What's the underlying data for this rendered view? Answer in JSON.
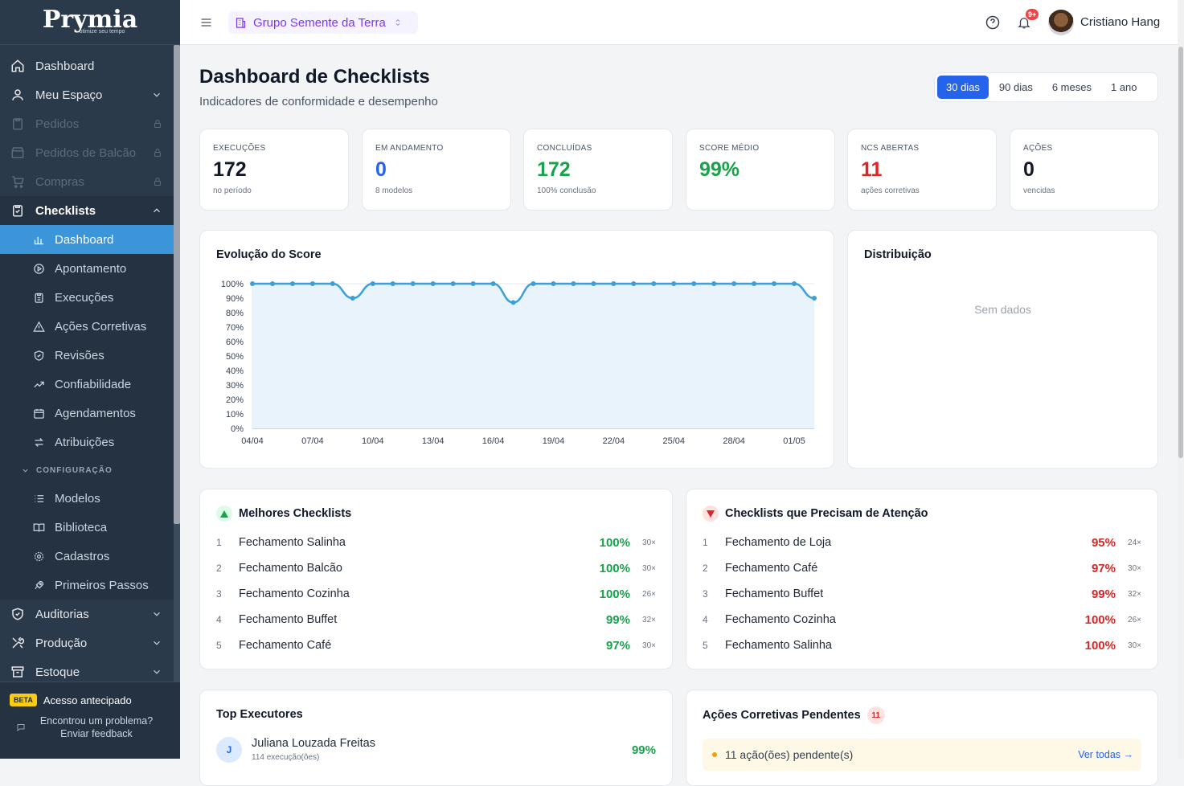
{
  "sidebar": {
    "brand": "Prymia",
    "tagline": "otimize seu tempo",
    "items": [
      {
        "label": "Dashboard"
      },
      {
        "label": "Meu Espaço"
      },
      {
        "label": "Pedidos"
      },
      {
        "label": "Pedidos de Balcão"
      },
      {
        "label": "Compras"
      },
      {
        "label": "Checklists"
      }
    ],
    "checklist_sub": [
      {
        "label": "Dashboard"
      },
      {
        "label": "Apontamento"
      },
      {
        "label": "Execuções"
      },
      {
        "label": "Ações Corretivas"
      },
      {
        "label": "Revisões"
      },
      {
        "label": "Confiabilidade"
      },
      {
        "label": "Agendamentos"
      },
      {
        "label": "Atribuições"
      }
    ],
    "config_label": "CONFIGURAÇÃO",
    "config_sub": [
      {
        "label": "Modelos"
      },
      {
        "label": "Biblioteca"
      },
      {
        "label": "Cadastros"
      },
      {
        "label": "Primeiros Passos"
      }
    ],
    "bottom_items": [
      {
        "label": "Auditorias"
      },
      {
        "label": "Produção"
      },
      {
        "label": "Estoque"
      }
    ],
    "beta_badge": "BETA",
    "beta_label": "Acesso antecipado",
    "feedback_line1": "Encontrou um problema?",
    "feedback_line2": "Enviar feedback"
  },
  "topbar": {
    "org_name": "Grupo Semente da Terra",
    "notif_badge": "9+",
    "user_name": "Cristiano Hang"
  },
  "page": {
    "title": "Dashboard de Checklists",
    "subtitle": "Indicadores de conformidade e desempenho",
    "periods": [
      "30 dias",
      "90 dias",
      "6 meses",
      "1 ano"
    ],
    "active_period": "30 dias"
  },
  "kpis": [
    {
      "label": "EXECUÇÕES",
      "value": "172",
      "sub": "no período",
      "color": "#111827"
    },
    {
      "label": "EM ANDAMENTO",
      "value": "0",
      "sub": "8 modelos",
      "color": "#2563eb"
    },
    {
      "label": "CONCLUÍDAS",
      "value": "172",
      "sub": "100% conclusão",
      "color": "#16a34a"
    },
    {
      "label": "SCORE MÉDIO",
      "value": "99%",
      "sub": "",
      "color": "#16a34a"
    },
    {
      "label": "NCS ABERTAS",
      "value": "11",
      "sub": "ações corretivas",
      "color": "#dc2626"
    },
    {
      "label": "AÇÕES",
      "value": "0",
      "sub": "vencidas",
      "color": "#111827"
    }
  ],
  "score_card": {
    "title": "Evolução do Score"
  },
  "distribution": {
    "title": "Distribuição",
    "empty": "Sem dados"
  },
  "chart_data": {
    "type": "area",
    "title": "Evolução do Score",
    "x_ticks": [
      "04/04",
      "07/04",
      "10/04",
      "13/04",
      "16/04",
      "19/04",
      "22/04",
      "25/04",
      "28/04",
      "01/05"
    ],
    "y_ticks": [
      "0%",
      "10%",
      "20%",
      "30%",
      "40%",
      "50%",
      "60%",
      "70%",
      "80%",
      "90%",
      "100%"
    ],
    "ylim": [
      0,
      100
    ],
    "values": [
      100,
      100,
      100,
      100,
      100,
      90,
      100,
      100,
      100,
      100,
      100,
      100,
      100,
      87,
      100,
      100,
      100,
      100,
      100,
      100,
      100,
      100,
      100,
      100,
      100,
      100,
      100,
      100,
      90
    ],
    "color": "#3b9fdd",
    "grid": true
  },
  "best": {
    "title": "Melhores Checklists",
    "rows": [
      {
        "n": "1",
        "name": "Fechamento Salinha",
        "pct": "100%",
        "count": "30×"
      },
      {
        "n": "2",
        "name": "Fechamento Balcão",
        "pct": "100%",
        "count": "30×"
      },
      {
        "n": "3",
        "name": "Fechamento Cozinha",
        "pct": "100%",
        "count": "26×"
      },
      {
        "n": "4",
        "name": "Fechamento Buffet",
        "pct": "99%",
        "count": "32×"
      },
      {
        "n": "5",
        "name": "Fechamento Café",
        "pct": "97%",
        "count": "30×"
      }
    ]
  },
  "attention": {
    "title": "Checklists que Precisam de Atenção",
    "rows": [
      {
        "n": "1",
        "name": "Fechamento de Loja",
        "pct": "95%",
        "count": "24×"
      },
      {
        "n": "2",
        "name": "Fechamento Café",
        "pct": "97%",
        "count": "30×"
      },
      {
        "n": "3",
        "name": "Fechamento Buffet",
        "pct": "99%",
        "count": "32×"
      },
      {
        "n": "4",
        "name": "Fechamento Cozinha",
        "pct": "100%",
        "count": "26×"
      },
      {
        "n": "5",
        "name": "Fechamento Salinha",
        "pct": "100%",
        "count": "30×"
      }
    ]
  },
  "executors": {
    "title": "Top Executores",
    "rows": [
      {
        "initial": "J",
        "name": "Juliana Louzada Freitas",
        "sub": "114 execução(ões)",
        "pct": "99%"
      }
    ]
  },
  "pending": {
    "title": "Ações Corretivas Pendentes",
    "count": "11",
    "text": "11 ação(ões) pendente(s)",
    "link": "Ver todas →"
  }
}
